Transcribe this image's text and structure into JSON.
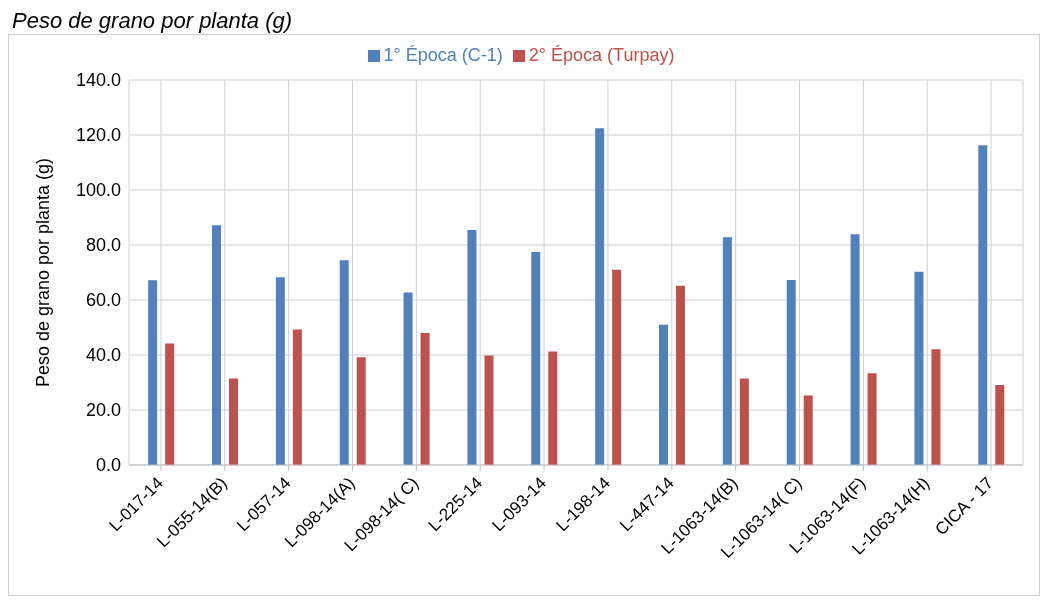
{
  "chart_data": {
    "type": "bar",
    "title": "Peso de grano por planta (g)",
    "ylabel": "Peso de grano por planta (g)",
    "categories": [
      "L-017-14",
      "L-055-14(B)",
      "L-057-14",
      "L-098-14(A)",
      "L-098-14( C)",
      "L-225-14",
      "L-093-14",
      "L-198-14",
      "L-447-14",
      "L-1063-14(B)",
      "L-1063-14( C)",
      "L-1063-14(F)",
      "L-1063-14(H)",
      "CICA - 17"
    ],
    "series": [
      {
        "name": "1° Época (C-1)",
        "color": "#4f81bd",
        "values": [
          67.2,
          87.2,
          68.3,
          74.5,
          62.7,
          85.5,
          77.5,
          122.5,
          51.0,
          82.8,
          67.3,
          83.9,
          70.3,
          116.3
        ]
      },
      {
        "name": "2° Época (Turpay)",
        "color": "#c0504d",
        "values": [
          44.2,
          31.5,
          49.3,
          39.2,
          48.0,
          39.8,
          41.3,
          71.0,
          65.2,
          31.5,
          25.3,
          33.4,
          42.1,
          29.1
        ]
      }
    ],
    "ylim": [
      0,
      140
    ],
    "yticks": [
      {
        "value": 0,
        "label": "0.0"
      },
      {
        "value": 20,
        "label": "20.0"
      },
      {
        "value": 40,
        "label": "40.0"
      },
      {
        "value": 60,
        "label": "60.0"
      },
      {
        "value": 80,
        "label": "80.0"
      },
      {
        "value": 100,
        "label": "100.0"
      },
      {
        "value": 120,
        "label": "120.0"
      },
      {
        "value": 140,
        "label": "140.0"
      }
    ],
    "grid": true,
    "legend": "top"
  }
}
